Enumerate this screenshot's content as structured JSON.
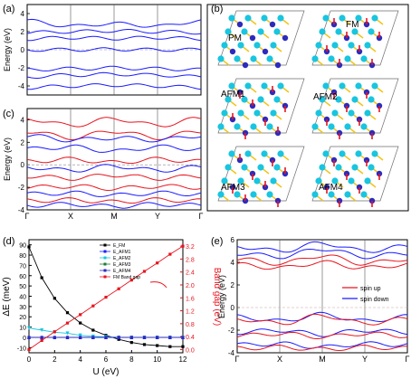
{
  "panels": {
    "a": {
      "letter": "(a)"
    },
    "b": {
      "letter": "(b)",
      "structures": [
        "PM",
        "FM",
        "AFM1",
        "AFM2",
        "AFM3",
        "AFM4"
      ]
    },
    "c": {
      "letter": "(c)"
    },
    "d": {
      "letter": "(d)"
    },
    "e": {
      "letter": "(e)"
    }
  },
  "colors": {
    "blue": "#1a1aff",
    "red": "#e8141e",
    "black": "#000000",
    "cyan": "#19c5e0",
    "green": "#1e7d32",
    "navy": "#2b2bbf",
    "bond": "#f2c418",
    "cell": "#6e6e6e",
    "dash": "#c9a6a6"
  },
  "chart_data": [
    {
      "panel": "(a)",
      "type": "line",
      "title": "",
      "xlabel": "",
      "ylabel": "Energy (eV)",
      "x_ticks": [
        "Γ",
        "X",
        "M",
        "Y",
        "Γ"
      ],
      "ylim": [
        -5,
        5
      ],
      "y_ticks": [
        -4,
        -2,
        0,
        2,
        4
      ],
      "series": [
        {
          "color": "blue",
          "values": [
            0.0,
            0.0,
            0.05,
            0.0,
            0.0
          ]
        },
        {
          "color": "blue",
          "values": [
            1.2,
            1.35,
            1.25,
            1.35,
            1.2
          ]
        },
        {
          "color": "blue",
          "values": [
            1.9,
            2.0,
            2.1,
            2.0,
            1.9
          ]
        },
        {
          "color": "blue",
          "values": [
            3.2,
            2.6,
            2.9,
            2.6,
            3.2
          ]
        },
        {
          "color": "blue",
          "values": [
            -2.2,
            -2.1,
            -2.0,
            -2.1,
            -2.2
          ]
        },
        {
          "color": "blue",
          "values": [
            -3.0,
            -2.8,
            -2.7,
            -2.8,
            -3.0
          ]
        },
        {
          "color": "blue",
          "values": [
            -4.2,
            -4.0,
            -3.9,
            -4.0,
            -4.2
          ]
        }
      ]
    },
    {
      "panel": "(c)",
      "type": "line",
      "title": "",
      "xlabel": "",
      "ylabel": "Energy (eV)",
      "x_ticks": [
        "Γ",
        "X",
        "M",
        "Y",
        "Γ"
      ],
      "ylim": [
        -4,
        5
      ],
      "y_ticks": [
        -4,
        -2,
        0,
        2,
        4
      ],
      "series": [
        {
          "color": "red",
          "values": [
            4.1,
            3.5,
            4.1,
            3.5,
            4.1
          ]
        },
        {
          "color": "red",
          "values": [
            3.0,
            2.4,
            3.0,
            2.4,
            3.0
          ]
        },
        {
          "color": "blue",
          "values": [
            2.6,
            2.2,
            2.4,
            2.2,
            2.6
          ]
        },
        {
          "color": "blue",
          "values": [
            1.4,
            1.6,
            1.2,
            1.6,
            1.4
          ]
        },
        {
          "color": "red",
          "values": [
            0.3,
            0.5,
            0.2,
            0.5,
            0.3
          ]
        },
        {
          "color": "blue",
          "values": [
            -0.2,
            -0.5,
            -0.1,
            -0.5,
            -0.2
          ]
        },
        {
          "color": "red",
          "values": [
            -1.0,
            -1.2,
            -0.9,
            -1.2,
            -1.0
          ]
        },
        {
          "color": "red",
          "values": [
            -2.0,
            -1.9,
            -2.1,
            -1.9,
            -2.0
          ]
        },
        {
          "color": "blue",
          "values": [
            -2.6,
            -2.5,
            -2.7,
            -2.5,
            -2.6
          ]
        },
        {
          "color": "red",
          "values": [
            -3.2,
            -3.1,
            -3.3,
            -3.1,
            -3.2
          ]
        },
        {
          "color": "blue",
          "values": [
            -3.6,
            -3.5,
            -3.7,
            -3.5,
            -3.6
          ]
        }
      ]
    },
    {
      "panel": "(d)",
      "type": "line",
      "title": "",
      "xlabel": "U (eV)",
      "ylabel": "ΔE (meV)",
      "ylabel_right": "Band gap (eV)",
      "xlim": [
        0,
        12
      ],
      "ylim": [
        -15,
        95
      ],
      "ylim_right": [
        -0.1,
        3.4
      ],
      "x_ticks": [
        0,
        2,
        4,
        6,
        8,
        10,
        12
      ],
      "y_ticks": [
        -10,
        0,
        10,
        20,
        30,
        40,
        50,
        60,
        70,
        80,
        90
      ],
      "y_ticks_right": [
        0,
        0.4,
        0.8,
        1.2,
        1.6,
        2.0,
        2.4,
        2.8,
        3.2
      ],
      "legend_position": "top-right",
      "x": [
        0,
        1,
        2,
        3,
        4,
        5,
        6,
        7,
        8,
        9,
        10,
        11,
        12
      ],
      "series": [
        {
          "name": "E_FM",
          "color": "black",
          "marker": "square",
          "axis": "left",
          "values": [
            88,
            58,
            38,
            24,
            14,
            7,
            2,
            -2,
            -5,
            -7,
            -8,
            -9,
            -9
          ]
        },
        {
          "name": "E_AFM1",
          "color": "blue",
          "marker": "triangle",
          "axis": "left",
          "values": [
            0,
            0,
            0,
            0,
            0,
            0,
            0,
            0,
            0,
            0,
            0,
            0,
            0
          ]
        },
        {
          "name": "E_AFM2",
          "color": "cyan",
          "marker": "triangle-down",
          "axis": "left",
          "values": [
            9,
            7,
            5,
            4,
            2,
            1,
            0.5,
            0,
            0,
            0,
            0,
            0,
            0
          ]
        },
        {
          "name": "E_AFM3",
          "color": "green",
          "marker": "circle",
          "axis": "left",
          "values": [
            0,
            0,
            0,
            0,
            0,
            0,
            0,
            0,
            0,
            0,
            0,
            0,
            0
          ]
        },
        {
          "name": "E_AFM4",
          "color": "navy",
          "marker": "star",
          "axis": "left",
          "values": [
            0,
            0,
            0,
            0,
            0,
            0,
            0,
            0,
            0,
            0,
            0,
            0,
            0
          ]
        },
        {
          "name": "FM Band gap",
          "color": "red",
          "marker": "square",
          "axis": "right",
          "values": [
            0.0,
            0.28,
            0.55,
            0.82,
            1.08,
            1.35,
            1.62,
            1.88,
            2.15,
            2.42,
            2.68,
            2.95,
            3.2
          ]
        }
      ]
    },
    {
      "panel": "(e)",
      "type": "line",
      "title": "",
      "xlabel": "",
      "ylabel": "Energy (eV)",
      "x_ticks": [
        "Γ",
        "X",
        "M",
        "Y",
        "Γ"
      ],
      "ylim": [
        -4,
        6
      ],
      "y_ticks": [
        -4,
        -2,
        0,
        2,
        4,
        6
      ],
      "legend_position": "right",
      "legend": [
        {
          "name": "spin up",
          "color": "red"
        },
        {
          "name": "spin down",
          "color": "blue"
        }
      ],
      "series": [
        {
          "color": "blue",
          "values": [
            5.4,
            5.0,
            5.7,
            5.0,
            5.4
          ]
        },
        {
          "color": "blue",
          "values": [
            4.8,
            4.5,
            5.2,
            4.5,
            4.8
          ]
        },
        {
          "color": "red",
          "values": [
            4.3,
            3.9,
            4.6,
            3.9,
            4.3
          ]
        },
        {
          "color": "red",
          "values": [
            3.8,
            3.5,
            4.0,
            3.5,
            3.8
          ]
        },
        {
          "color": "blue",
          "values": [
            -0.8,
            -1.2,
            -0.6,
            -1.2,
            -0.8
          ]
        },
        {
          "color": "red",
          "values": [
            -1.0,
            -1.4,
            -0.7,
            -1.4,
            -1.0
          ]
        },
        {
          "color": "blue",
          "values": [
            -2.2,
            -2.0,
            -2.4,
            -2.0,
            -2.2
          ]
        },
        {
          "color": "red",
          "values": [
            -2.5,
            -2.3,
            -2.6,
            -2.3,
            -2.5
          ]
        },
        {
          "color": "blue",
          "values": [
            -3.3,
            -3.2,
            -3.5,
            -3.2,
            -3.3
          ]
        },
        {
          "color": "red",
          "values": [
            -3.6,
            -3.5,
            -3.7,
            -3.5,
            -3.6
          ]
        }
      ]
    }
  ]
}
